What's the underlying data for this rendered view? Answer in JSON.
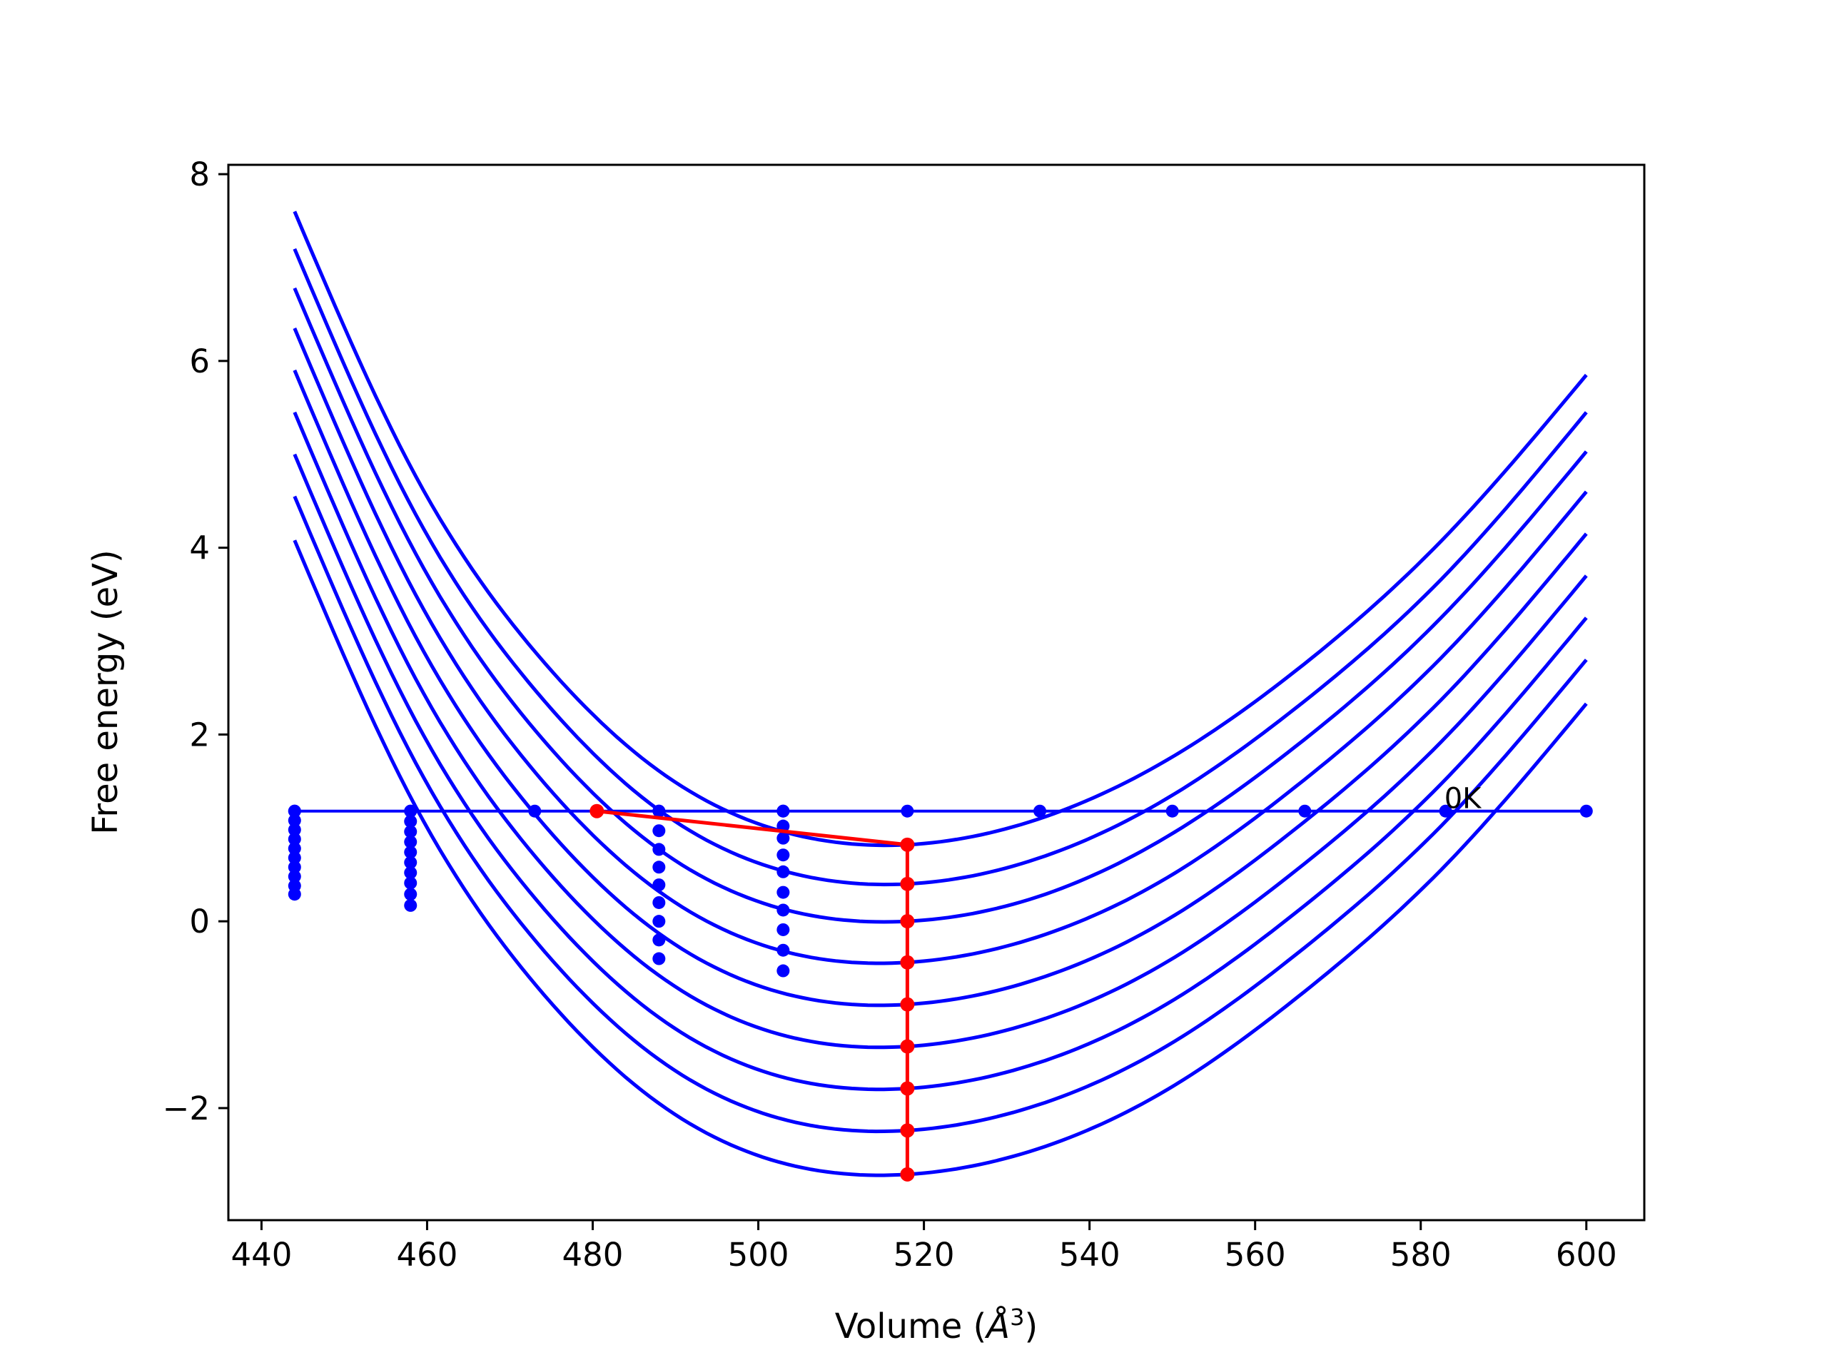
{
  "chart_data": {
    "type": "line",
    "title": "",
    "xlabel": "Volume (",
    "xlabel_unit": "Å",
    "xlabel_exp": "3",
    "xlabel_close": ")",
    "ylabel": "Free energy (eV)",
    "xlim": [
      436,
      607
    ],
    "ylim": [
      -3.2,
      8.1
    ],
    "xticks": [
      440,
      460,
      480,
      500,
      520,
      540,
      560,
      580,
      600
    ],
    "xtick_labels": [
      "440",
      "460",
      "480",
      "500",
      "520",
      "540",
      "560",
      "580",
      "600"
    ],
    "yticks": [
      -2,
      0,
      2,
      4,
      6,
      8
    ],
    "ytick_labels": [
      "−2",
      "0",
      "2",
      "4",
      "6",
      "8"
    ],
    "grid": false,
    "colors": {
      "curves": "#0000ff",
      "equilibrium": "#ff0000"
    },
    "curve_x_range": [
      444,
      600
    ],
    "curves": [
      {
        "x": [
          444,
          458,
          473,
          488,
          503,
          518,
          534,
          550,
          566,
          583,
          600
        ],
        "y": [
          7.6,
          4.87,
          2.89,
          1.61,
          0.96,
          0.82,
          1.1,
          1.76,
          2.76,
          4.12,
          5.85
        ]
      },
      {
        "x": [
          444,
          458,
          473,
          488,
          503,
          518,
          534,
          550,
          566,
          583,
          600
        ],
        "y": [
          7.2,
          4.46,
          2.48,
          1.19,
          0.54,
          0.4,
          0.68,
          1.35,
          2.36,
          3.71,
          5.45
        ]
      },
      {
        "x": [
          444,
          458,
          473,
          488,
          503,
          518,
          534,
          550,
          566,
          583,
          600
        ],
        "y": [
          6.78,
          4.04,
          2.05,
          0.77,
          0.13,
          0.0,
          0.27,
          0.94,
          1.95,
          3.3,
          5.03
        ]
      },
      {
        "x": [
          444,
          458,
          473,
          488,
          503,
          518,
          534,
          550,
          566,
          583,
          600
        ],
        "y": [
          6.35,
          3.6,
          1.6,
          0.32,
          -0.32,
          -0.44,
          -0.16,
          0.5,
          1.52,
          2.87,
          4.6
        ]
      },
      {
        "x": [
          444,
          458,
          473,
          488,
          503,
          518,
          534,
          550,
          566,
          583,
          600
        ],
        "y": [
          5.9,
          3.15,
          1.15,
          -0.13,
          -0.77,
          -0.89,
          -0.61,
          0.05,
          1.07,
          2.42,
          4.15
        ]
      },
      {
        "x": [
          444,
          458,
          473,
          488,
          503,
          518,
          534,
          550,
          566,
          583,
          600
        ],
        "y": [
          5.45,
          2.7,
          0.7,
          -0.58,
          -1.22,
          -1.34,
          -1.06,
          -0.4,
          0.62,
          1.97,
          3.7
        ]
      },
      {
        "x": [
          444,
          458,
          473,
          488,
          503,
          518,
          534,
          550,
          566,
          583,
          600
        ],
        "y": [
          5.0,
          2.25,
          0.25,
          -1.03,
          -1.67,
          -1.79,
          -1.51,
          -0.85,
          0.17,
          1.52,
          3.25
        ]
      },
      {
        "x": [
          444,
          458,
          473,
          488,
          503,
          518,
          534,
          550,
          566,
          583,
          600
        ],
        "y": [
          4.55,
          1.8,
          -0.2,
          -1.48,
          -2.12,
          -2.24,
          -1.96,
          -1.3,
          -0.28,
          1.07,
          2.8
        ]
      },
      {
        "x": [
          444,
          458,
          473,
          488,
          503,
          518,
          534,
          550,
          566,
          583,
          600
        ],
        "y": [
          4.08,
          1.33,
          -0.67,
          -1.95,
          -2.59,
          -2.71,
          -2.43,
          -1.77,
          -0.75,
          0.6,
          2.33
        ]
      }
    ],
    "baseline_series": {
      "name": "0K",
      "x": [
        444,
        458,
        473,
        480.5,
        488,
        503,
        518,
        534,
        550,
        566,
        583,
        600
      ],
      "y": [
        1.18,
        1.18,
        1.18,
        1.18,
        1.18,
        1.18,
        1.18,
        1.18,
        1.18,
        1.18,
        1.18,
        1.18
      ]
    },
    "point_columns": [
      {
        "x": 444,
        "y": [
          1.18,
          1.08,
          0.98,
          0.88,
          0.78,
          0.68,
          0.58,
          0.48,
          0.38,
          0.29
        ]
      },
      {
        "x": 458,
        "y": [
          1.18,
          1.07,
          0.96,
          0.85,
          0.74,
          0.63,
          0.52,
          0.41,
          0.29,
          0.17
        ]
      },
      {
        "x": 488,
        "y": [
          1.18,
          0.97,
          0.77,
          0.58,
          0.39,
          0.2,
          0.0,
          -0.2,
          -0.4
        ]
      },
      {
        "x": 503,
        "y": [
          1.18,
          1.02,
          0.89,
          0.71,
          0.53,
          0.31,
          0.12,
          -0.09,
          -0.31,
          -0.53
        ]
      }
    ],
    "equilibrium_line": {
      "x": [
        480.5,
        518,
        518,
        518,
        518,
        518,
        518,
        518,
        518,
        518
      ],
      "y": [
        1.18,
        0.82,
        0.4,
        0.0,
        -0.44,
        -0.89,
        -1.34,
        -1.79,
        -2.24,
        -2.71
      ]
    },
    "annotations": [
      {
        "text": "0K",
        "x": 582.5,
        "y": 1.18
      }
    ]
  }
}
